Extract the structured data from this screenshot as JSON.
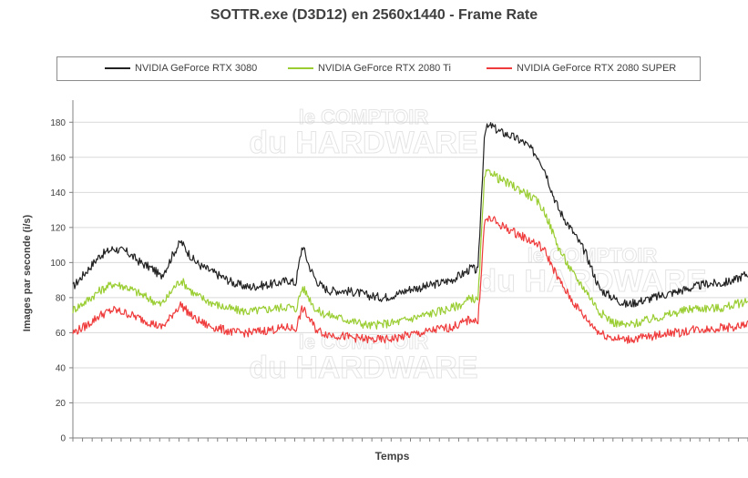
{
  "chart_data": {
    "type": "line",
    "title": "SOTTR.exe (D3D12) en 2560x1440 - Frame Rate",
    "xlabel": "Temps",
    "ylabel": "Images par seconde (i/s)",
    "ylim": [
      0,
      190
    ],
    "yticks": [
      0,
      20,
      40,
      60,
      80,
      100,
      120,
      140,
      160,
      180
    ],
    "grid": true,
    "legend_position": "top",
    "watermark": [
      "le COMPTOIR",
      "du HARDWARE"
    ],
    "series": [
      {
        "name": "NVIDIA GeForce RTX 3080",
        "color": "#222222",
        "points": [
          [
            0,
            86
          ],
          [
            2,
            95
          ],
          [
            4,
            104
          ],
          [
            6,
            108
          ],
          [
            8,
            106
          ],
          [
            10,
            100
          ],
          [
            12,
            96
          ],
          [
            13,
            92
          ],
          [
            14,
            98
          ],
          [
            15,
            106
          ],
          [
            16,
            112
          ],
          [
            17,
            106
          ],
          [
            18,
            101
          ],
          [
            19,
            98
          ],
          [
            20,
            96
          ],
          [
            22,
            92
          ],
          [
            24,
            88
          ],
          [
            26,
            86
          ],
          [
            28,
            87
          ],
          [
            30,
            88
          ],
          [
            32,
            90
          ],
          [
            33,
            88
          ],
          [
            34,
            110
          ],
          [
            35,
            98
          ],
          [
            36,
            90
          ],
          [
            37,
            86
          ],
          [
            38,
            84
          ],
          [
            40,
            84
          ],
          [
            42,
            83
          ],
          [
            44,
            81
          ],
          [
            46,
            80
          ],
          [
            48,
            82
          ],
          [
            50,
            85
          ],
          [
            52,
            86
          ],
          [
            54,
            88
          ],
          [
            56,
            90
          ],
          [
            58,
            94
          ],
          [
            59,
            97
          ],
          [
            60,
            95
          ],
          [
            61,
            176
          ],
          [
            62,
            178
          ],
          [
            63,
            175
          ],
          [
            65,
            172
          ],
          [
            67,
            168
          ],
          [
            69,
            160
          ],
          [
            70,
            152
          ],
          [
            71,
            140
          ],
          [
            72,
            130
          ],
          [
            74,
            118
          ],
          [
            76,
            105
          ],
          [
            77,
            95
          ],
          [
            78,
            85
          ],
          [
            80,
            80
          ],
          [
            82,
            76
          ],
          [
            84,
            78
          ],
          [
            86,
            80
          ],
          [
            88,
            82
          ],
          [
            90,
            84
          ],
          [
            92,
            86
          ],
          [
            94,
            88
          ],
          [
            96,
            88
          ],
          [
            98,
            90
          ],
          [
            100,
            94
          ]
        ]
      },
      {
        "name": "NVIDIA GeForce RTX 2080 Ti",
        "color": "#9acd32",
        "points": [
          [
            0,
            73
          ],
          [
            2,
            78
          ],
          [
            4,
            84
          ],
          [
            6,
            88
          ],
          [
            8,
            86
          ],
          [
            10,
            82
          ],
          [
            12,
            78
          ],
          [
            13,
            76
          ],
          [
            14,
            80
          ],
          [
            15,
            86
          ],
          [
            16,
            90
          ],
          [
            17,
            86
          ],
          [
            18,
            82
          ],
          [
            19,
            80
          ],
          [
            20,
            78
          ],
          [
            22,
            75
          ],
          [
            24,
            73
          ],
          [
            26,
            72
          ],
          [
            28,
            73
          ],
          [
            30,
            74
          ],
          [
            32,
            75
          ],
          [
            33,
            73
          ],
          [
            34,
            86
          ],
          [
            35,
            80
          ],
          [
            36,
            73
          ],
          [
            37,
            71
          ],
          [
            38,
            70
          ],
          [
            40,
            68
          ],
          [
            42,
            66
          ],
          [
            44,
            64
          ],
          [
            46,
            65
          ],
          [
            48,
            66
          ],
          [
            50,
            68
          ],
          [
            52,
            70
          ],
          [
            54,
            72
          ],
          [
            56,
            74
          ],
          [
            58,
            77
          ],
          [
            59,
            80
          ],
          [
            60,
            78
          ],
          [
            61,
            150
          ],
          [
            62,
            152
          ],
          [
            63,
            148
          ],
          [
            65,
            144
          ],
          [
            67,
            140
          ],
          [
            69,
            134
          ],
          [
            70,
            128
          ],
          [
            71,
            118
          ],
          [
            72,
            108
          ],
          [
            74,
            94
          ],
          [
            76,
            84
          ],
          [
            77,
            78
          ],
          [
            78,
            72
          ],
          [
            80,
            66
          ],
          [
            82,
            64
          ],
          [
            84,
            66
          ],
          [
            86,
            68
          ],
          [
            88,
            70
          ],
          [
            90,
            72
          ],
          [
            92,
            74
          ],
          [
            94,
            74
          ],
          [
            96,
            74
          ],
          [
            98,
            76
          ],
          [
            100,
            78
          ]
        ]
      },
      {
        "name": "NVIDIA GeForce RTX 2080 SUPER",
        "color": "#ef3b3b",
        "points": [
          [
            0,
            60
          ],
          [
            2,
            64
          ],
          [
            4,
            70
          ],
          [
            6,
            73
          ],
          [
            8,
            71
          ],
          [
            10,
            68
          ],
          [
            12,
            65
          ],
          [
            13,
            63
          ],
          [
            14,
            66
          ],
          [
            15,
            72
          ],
          [
            16,
            76
          ],
          [
            17,
            72
          ],
          [
            18,
            68
          ],
          [
            19,
            66
          ],
          [
            20,
            64
          ],
          [
            22,
            62
          ],
          [
            24,
            60
          ],
          [
            26,
            60
          ],
          [
            28,
            61
          ],
          [
            30,
            62
          ],
          [
            32,
            63
          ],
          [
            33,
            62
          ],
          [
            34,
            74
          ],
          [
            35,
            68
          ],
          [
            36,
            62
          ],
          [
            37,
            60
          ],
          [
            38,
            59
          ],
          [
            40,
            58
          ],
          [
            42,
            57
          ],
          [
            44,
            56
          ],
          [
            46,
            56
          ],
          [
            48,
            57
          ],
          [
            50,
            59
          ],
          [
            52,
            60
          ],
          [
            54,
            62
          ],
          [
            56,
            63
          ],
          [
            58,
            66
          ],
          [
            59,
            68
          ],
          [
            60,
            66
          ],
          [
            61,
            124
          ],
          [
            62,
            125
          ],
          [
            63,
            122
          ],
          [
            65,
            118
          ],
          [
            67,
            114
          ],
          [
            69,
            110
          ],
          [
            70,
            106
          ],
          [
            71,
            98
          ],
          [
            72,
            90
          ],
          [
            74,
            78
          ],
          [
            76,
            68
          ],
          [
            77,
            64
          ],
          [
            78,
            60
          ],
          [
            80,
            57
          ],
          [
            82,
            56
          ],
          [
            84,
            57
          ],
          [
            86,
            58
          ],
          [
            88,
            60
          ],
          [
            90,
            60
          ],
          [
            92,
            62
          ],
          [
            94,
            62
          ],
          [
            96,
            63
          ],
          [
            98,
            63
          ],
          [
            100,
            65
          ]
        ]
      }
    ]
  }
}
